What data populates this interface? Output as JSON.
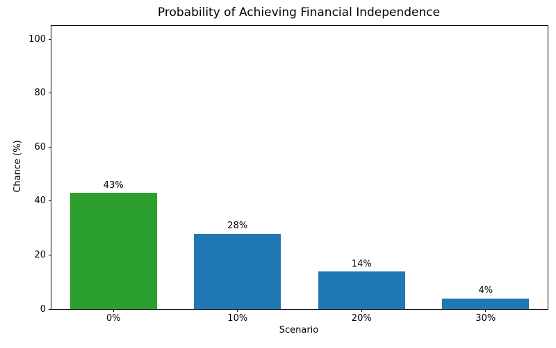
{
  "chart_data": {
    "type": "bar",
    "title": "Probability of Achieving Financial Independence",
    "xlabel": "Scenario",
    "ylabel": "Chance (%)",
    "categories": [
      "0%",
      "10%",
      "20%",
      "30%"
    ],
    "values": [
      43,
      28,
      14,
      4
    ],
    "value_labels": [
      "43%",
      "28%",
      "14%",
      "4%"
    ],
    "bar_colors": [
      "#2ca02c",
      "#1f77b4",
      "#1f77b4",
      "#1f77b4"
    ],
    "ylim": [
      0,
      105
    ],
    "yticks": [
      0,
      20,
      40,
      60,
      80,
      100
    ],
    "grid": false,
    "legend_position": "none",
    "background_color": "#ffffff",
    "spine_color": "#000000",
    "text_color": "#000000"
  }
}
